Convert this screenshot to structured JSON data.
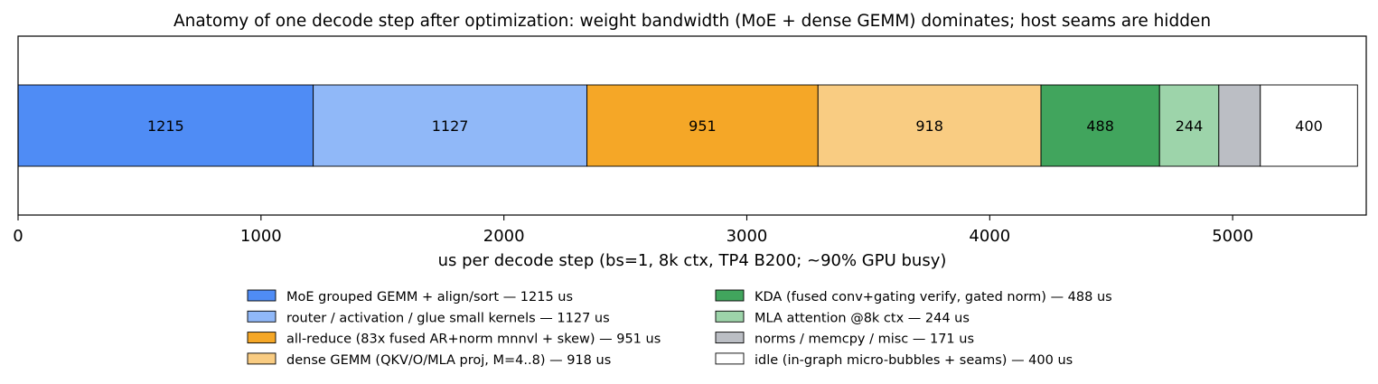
{
  "chart_data": {
    "type": "bar",
    "orientation": "horizontal-stacked",
    "title": "Anatomy of one decode step after optimization: weight bandwidth (MoE + dense GEMM) dominates; host seams are hidden",
    "xlabel": "us per decode step (bs=1, 8k ctx, TP4 B200; ~90% GPU busy)",
    "ylabel": "",
    "xlim": [
      0,
      5550
    ],
    "xticks": [
      0,
      1000,
      2000,
      3000,
      4000,
      5000
    ],
    "grid": false,
    "legend_position": "bottom",
    "series": [
      {
        "name": "MoE grouped GEMM + align/sort — 1215 us",
        "value": 1215,
        "label": "1215",
        "color": "#4f8cf5"
      },
      {
        "name": "router / activation / glue small kernels — 1127 us",
        "value": 1127,
        "label": "1127",
        "color": "#90b8f8"
      },
      {
        "name": "all-reduce (83x fused AR+norm mnnvl + skew) — 951 us",
        "value": 951,
        "label": "951",
        "color": "#f5a727"
      },
      {
        "name": "dense GEMM (QKV/O/MLA proj, M=4..8) — 918 us",
        "value": 918,
        "label": "918",
        "color": "#f9cc82"
      },
      {
        "name": "KDA (fused conv+gating verify, gated norm) — 488 us",
        "value": 488,
        "label": "488",
        "color": "#41a55d"
      },
      {
        "name": "MLA attention @8k ctx — 244 us",
        "value": 244,
        "label": "244",
        "color": "#9dd4aa"
      },
      {
        "name": "norms / memcpy / misc — 171 us",
        "value": 171,
        "label": "",
        "color": "#bbbec4"
      },
      {
        "name": "idle (in-graph micro-bubbles + seams) — 400 us",
        "value": 400,
        "label": "400",
        "color": "#ffffff"
      }
    ]
  }
}
